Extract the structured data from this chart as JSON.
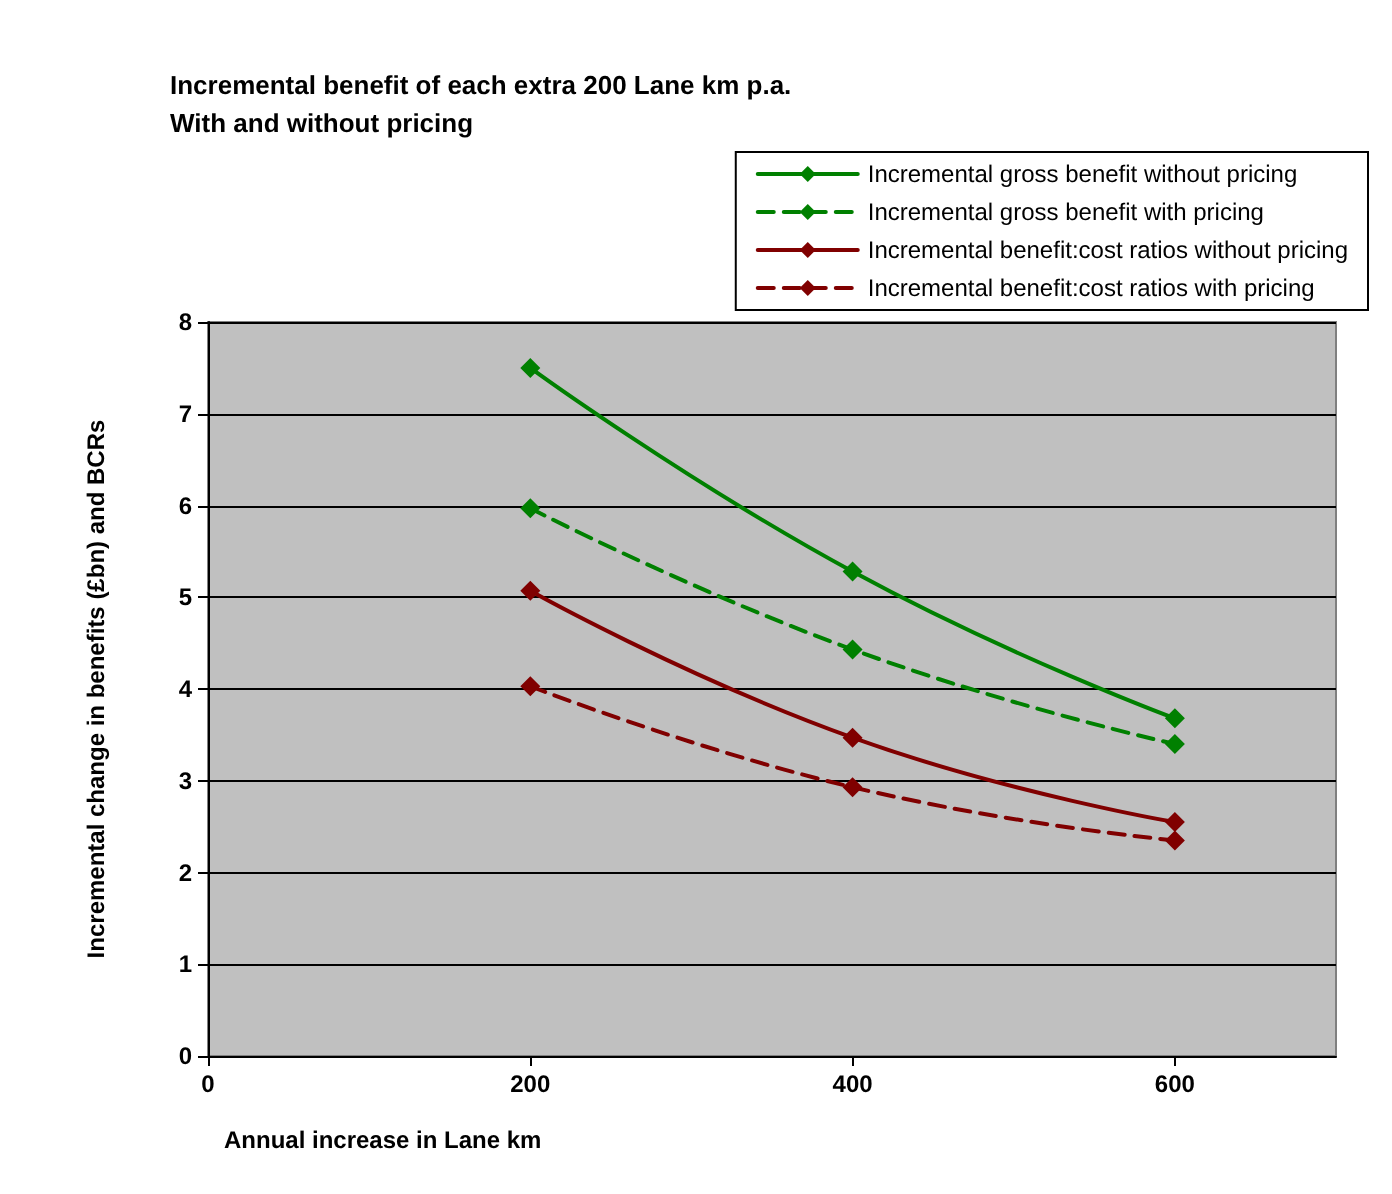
{
  "chart_data": {
    "type": "line",
    "title": "Incremental benefit of each extra 200 Lane km p.a.\nWith and without pricing",
    "xlabel": "Annual increase in Lane km",
    "ylabel": "Incremental change in benefits (£bn) and BCRs",
    "x": [
      200,
      400,
      600
    ],
    "xlim": [
      0,
      700
    ],
    "xticks": [
      0,
      200,
      400,
      600
    ],
    "ylim": [
      0,
      8
    ],
    "yticks": [
      0,
      1,
      2,
      3,
      4,
      5,
      6,
      7,
      8
    ],
    "grid": "y",
    "legend": "top right",
    "marker": "diamond",
    "series": [
      {
        "name": "Incremental gross benefit without pricing",
        "color": "#008000",
        "values": [
          7.5,
          5.28,
          3.68
        ],
        "line_style": "solid"
      },
      {
        "name": "Incremental gross benefit with pricing",
        "color": "#008000",
        "values": [
          5.97,
          4.43,
          3.4
        ],
        "line_style": "dashed"
      },
      {
        "name": "Incremental benefit:cost ratios without pricing",
        "color": "#800000",
        "values": [
          5.07,
          3.47,
          2.55
        ],
        "line_style": "solid"
      },
      {
        "name": "Incremental benefit:cost ratios with pricing",
        "color": "#800000",
        "values": [
          4.03,
          2.93,
          2.35
        ],
        "line_style": "dashed"
      }
    ]
  }
}
